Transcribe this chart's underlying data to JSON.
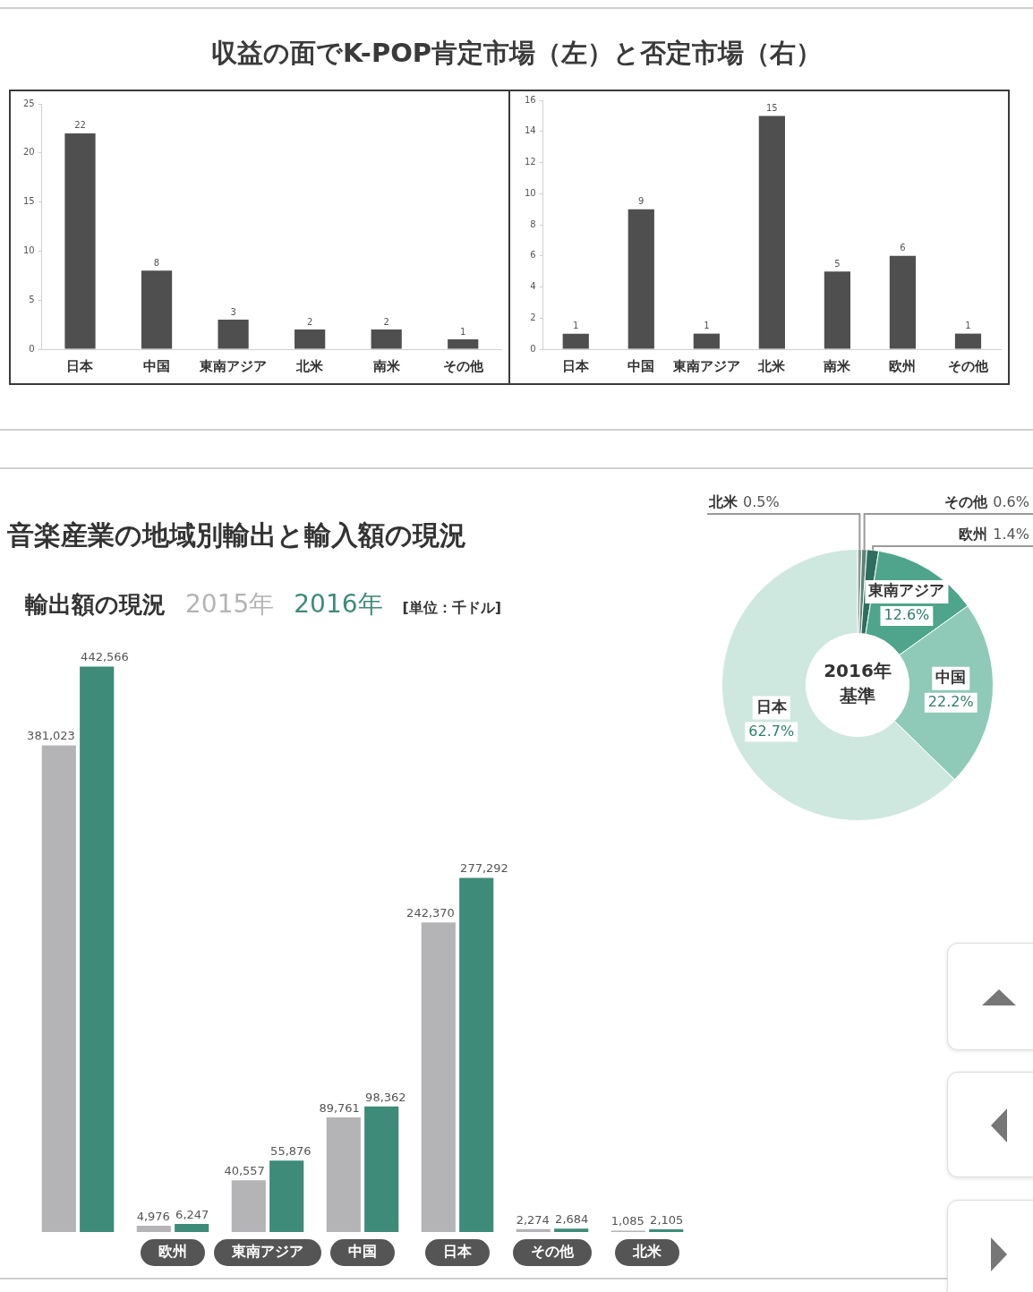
{
  "chart_data": [
    {
      "type": "bar",
      "title": "収益の面でK-POP肯定市場（左）と否定市場（右）",
      "categories": [
        "日本",
        "中国",
        "東南アジア",
        "北米",
        "南米",
        "その他"
      ],
      "values": [
        22,
        8,
        3,
        2,
        2,
        1
      ],
      "color": "#4f4f4f",
      "ylim": [
        0,
        25
      ],
      "yticks": [
        0,
        5,
        10,
        15,
        20,
        25
      ],
      "data_labels": true
    },
    {
      "type": "bar",
      "categories": [
        "日本",
        "中国",
        "東南アジア",
        "北米",
        "南米",
        "欧州",
        "その他"
      ],
      "values": [
        1,
        9,
        1,
        15,
        5,
        6,
        1
      ],
      "color": "#4f4f4f",
      "ylim": [
        0,
        16
      ],
      "yticks": [
        0,
        2,
        4,
        6,
        8,
        10,
        12,
        14,
        16
      ],
      "data_labels": true
    },
    {
      "type": "bar",
      "title": "音楽産業の地域別輸出と輸入額の現況",
      "subtitle": "輸出額の現況",
      "annotations": [
        "[単位：千ドル]"
      ],
      "categories": [
        null,
        "欧州",
        "東南アジア",
        "中国",
        "日本",
        "その他",
        "北米"
      ],
      "series": [
        {
          "name": "2015年",
          "color": "#b4b4b6",
          "values": [
            381023,
            4976,
            40557,
            89761,
            242370,
            2274,
            1085
          ],
          "value_labels": [
            "381,023",
            "4,976",
            "40,557",
            "89,761",
            "242,370",
            "2,274",
            "1,085"
          ]
        },
        {
          "name": "2016年",
          "color": "#3d8b78",
          "values": [
            442566,
            6247,
            55876,
            98362,
            277292,
            2684,
            2105
          ],
          "value_labels": [
            "442,566",
            "6,247",
            "55,876",
            "98,362",
            "277,292",
            "2,684",
            "2,105"
          ]
        }
      ],
      "legend": "top left"
    },
    {
      "type": "donut",
      "categories": [
        "北米",
        "その他",
        "欧州",
        "東南アジア",
        "中国",
        "日本"
      ],
      "values": [
        0.5,
        0.6,
        1.4,
        12.6,
        22.2,
        62.7
      ],
      "colors": [
        "#8a9a95",
        "#5f8379",
        "#2e6e5e",
        "#4ea58c",
        "#8ecab7",
        "#cfe8df"
      ],
      "value_labels": [
        "0.5%",
        "0.6%",
        "1.4%",
        "12.6%",
        "22.2%",
        "62.7%"
      ],
      "annotations": [
        "2016年基準"
      ]
    }
  ]
}
